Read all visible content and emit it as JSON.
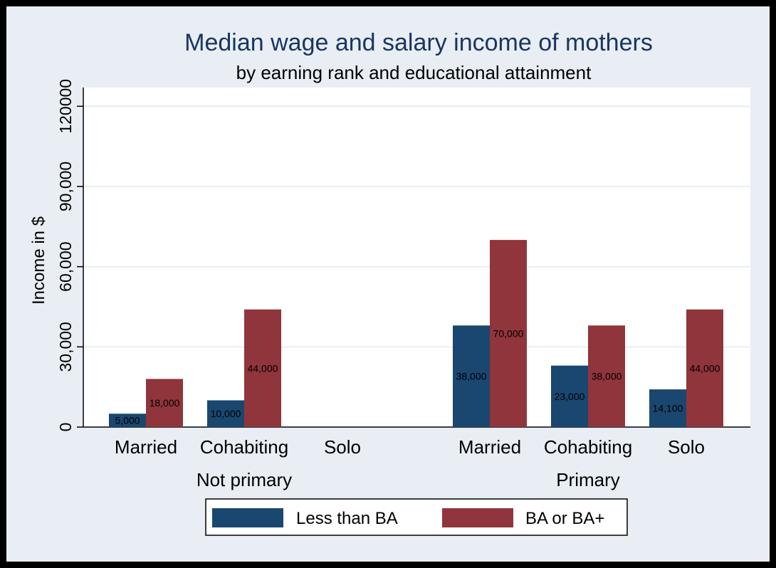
{
  "chart_data": {
    "type": "bar",
    "title": "Median wage and salary income of mothers",
    "subtitle": "by earning rank and educational attainment",
    "ylabel": "Income in $",
    "ylim": [
      0,
      127000
    ],
    "yticks": [
      {
        "value": 0,
        "label": "0"
      },
      {
        "value": 30000,
        "label": "30,000"
      },
      {
        "value": 60000,
        "label": "60,000"
      },
      {
        "value": 90000,
        "label": "90,000"
      },
      {
        "value": 120000,
        "label": "120000"
      }
    ],
    "grid": true,
    "legend_position": "bottom",
    "groups": [
      {
        "label": "Not primary",
        "categories": [
          {
            "label": "Married",
            "values": [
              5000,
              18000
            ],
            "labels": [
              "5,000",
              "18,000"
            ]
          },
          {
            "label": "Cohabiting",
            "values": [
              10000,
              44000
            ],
            "labels": [
              "10,000",
              "44,000"
            ]
          },
          {
            "label": "Solo",
            "values": [
              null,
              null
            ],
            "labels": [
              "",
              ""
            ]
          }
        ]
      },
      {
        "label": "Primary",
        "categories": [
          {
            "label": "Married",
            "values": [
              38000,
              70000
            ],
            "labels": [
              "38,000",
              "70,000"
            ]
          },
          {
            "label": "Cohabiting",
            "values": [
              23000,
              38000
            ],
            "labels": [
              "23,000",
              "38,000"
            ]
          },
          {
            "label": "Solo",
            "values": [
              14100,
              44000
            ],
            "labels": [
              "14,100",
              "44,000"
            ]
          }
        ]
      }
    ],
    "series": [
      {
        "name": "Less than BA",
        "color": "#1a476f"
      },
      {
        "name": "BA or BA+",
        "color": "#90353b"
      }
    ]
  },
  "colors": {
    "frame": "#000000",
    "outer_background": "#e8eef4",
    "plot_background": "#ffffff",
    "gridline": "#e8eef4",
    "title": "#1a3560",
    "axis": "#000000"
  }
}
